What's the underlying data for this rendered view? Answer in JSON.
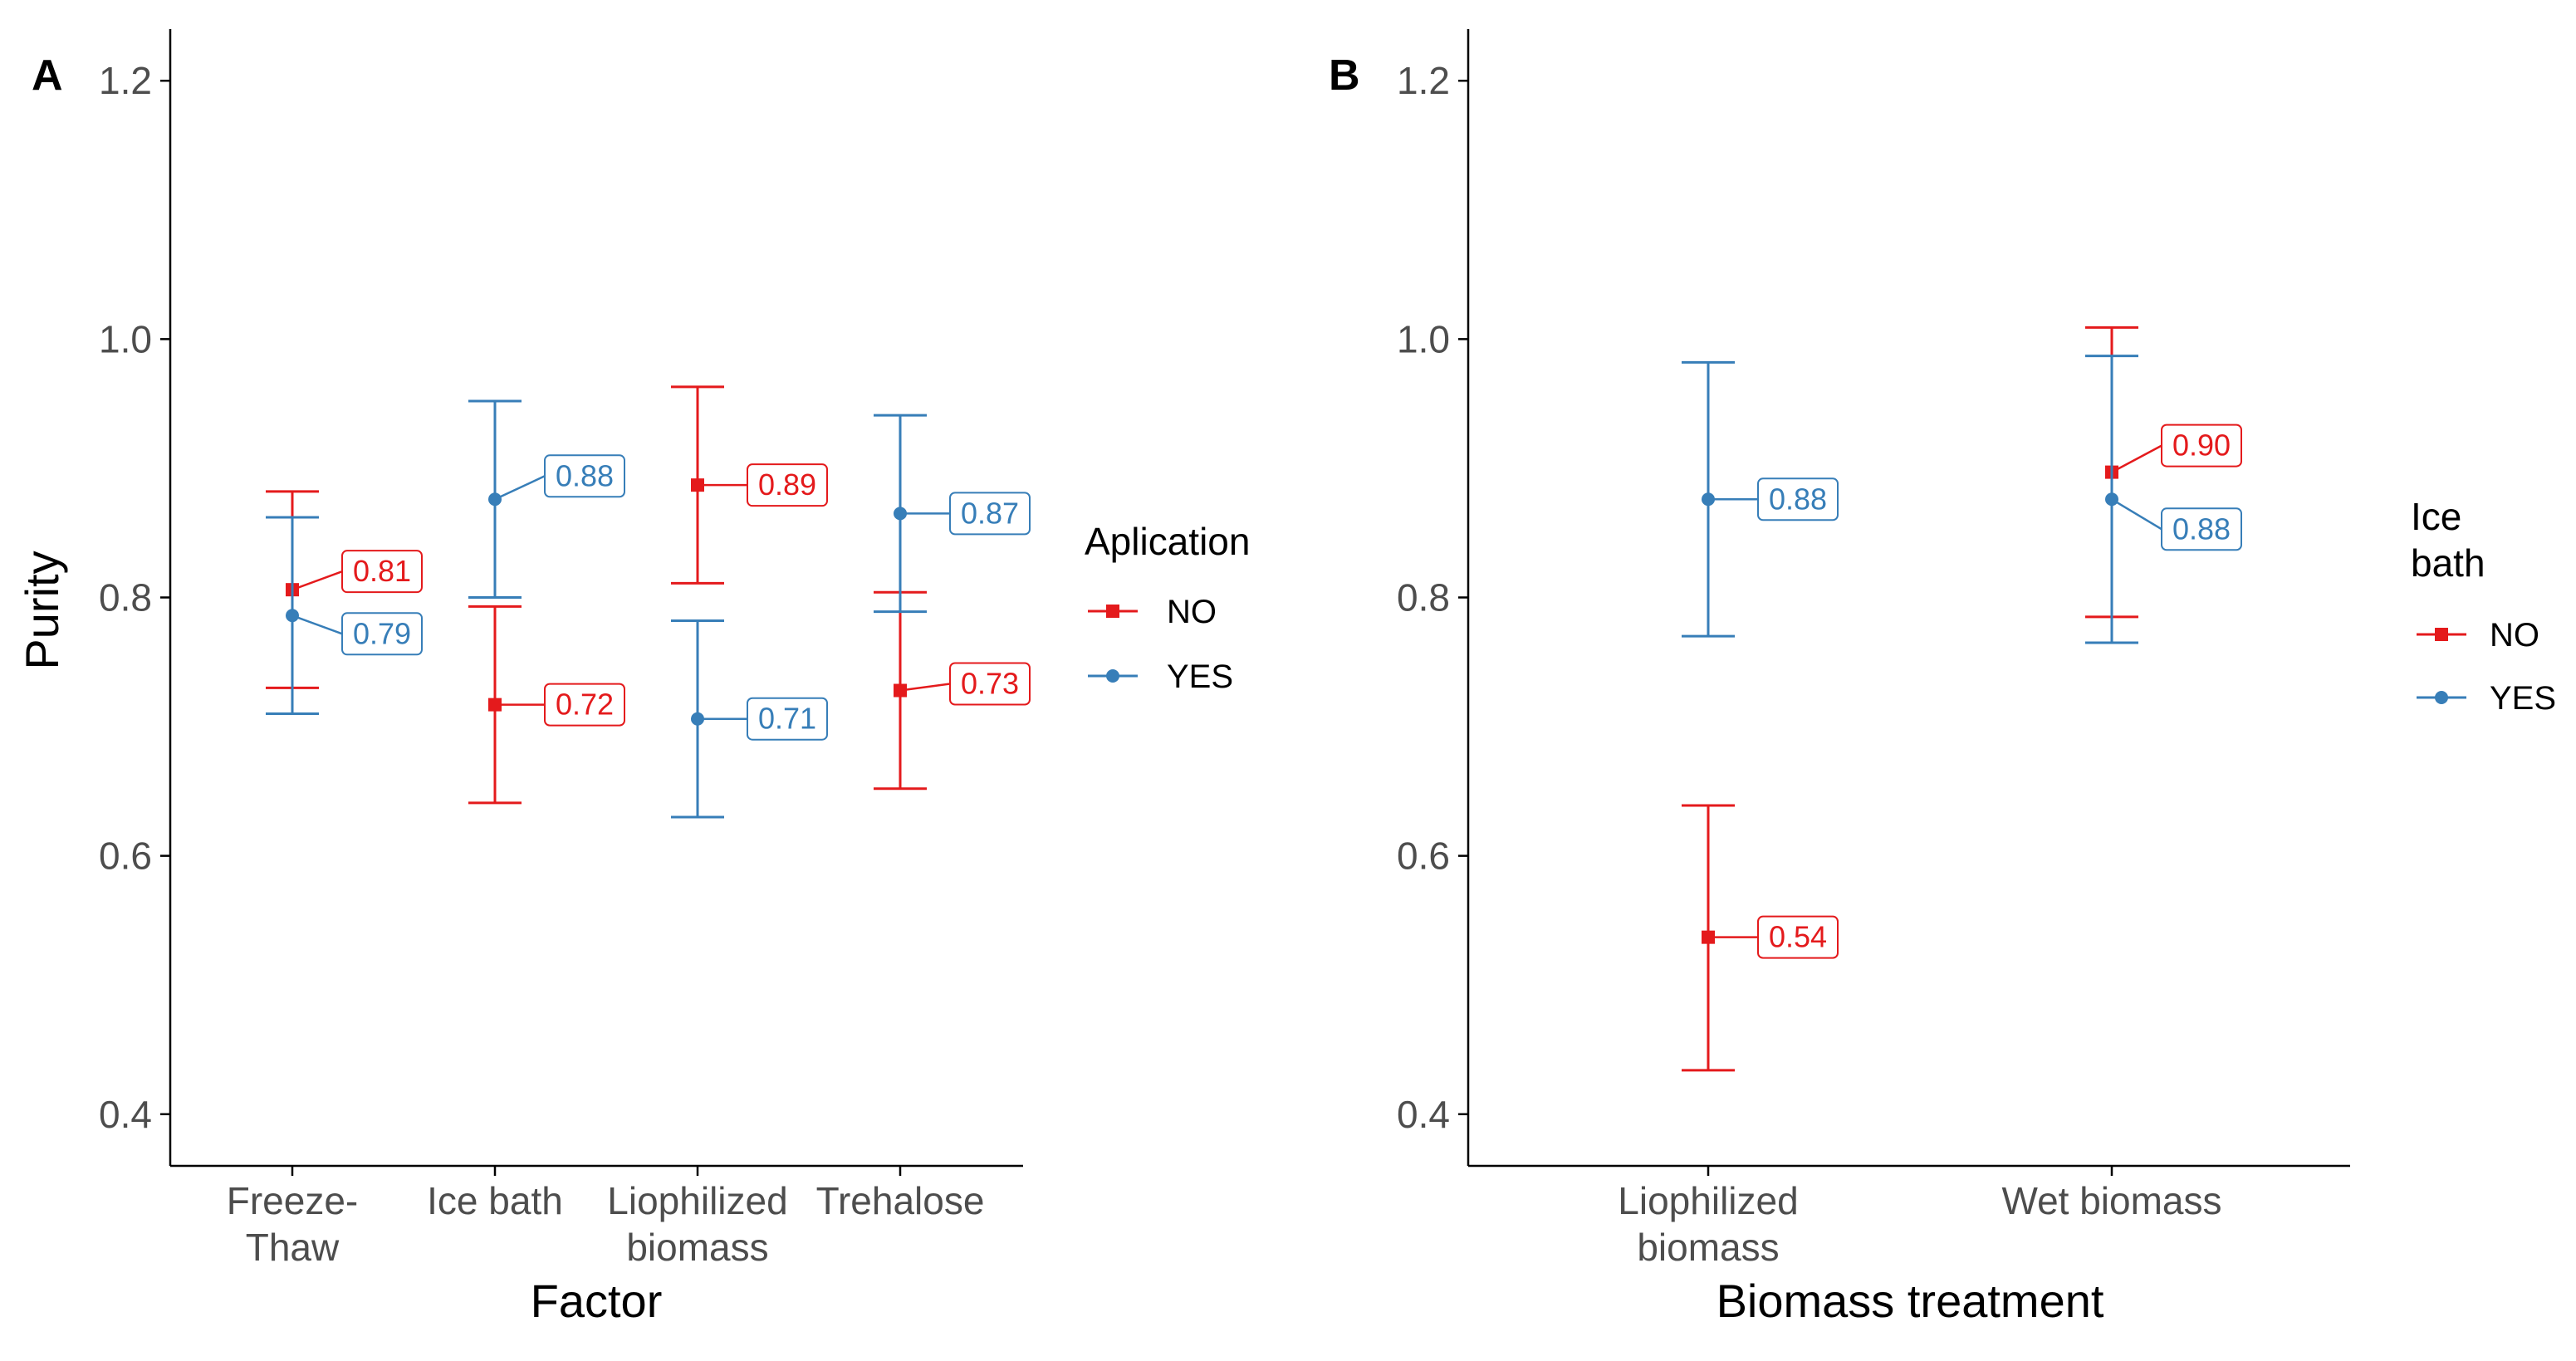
{
  "colors": {
    "NO": "#E41A1C",
    "YES": "#377EB8",
    "axis": "#000000",
    "tick_text": "#4d4d4d"
  },
  "chart_data": [
    {
      "type": "errorbar-point",
      "panel": "A",
      "xlabel": "Factor",
      "ylabel": "Purity",
      "ylim": [
        0.36,
        1.24
      ],
      "yticks": [
        "0.4",
        "0.6",
        "0.8",
        "1.0",
        "1.2"
      ],
      "categories": [
        [
          "Freeze-",
          "Thaw"
        ],
        [
          "Ice bath"
        ],
        [
          "Liophilized",
          "biomass"
        ],
        [
          "Trehalose"
        ]
      ],
      "legend_title": [
        "Aplication"
      ],
      "series": [
        {
          "name": "NO",
          "marker": "square",
          "values": [
            0.806,
            0.717,
            0.887,
            0.728
          ],
          "lower": [
            0.73,
            0.641,
            0.811,
            0.652
          ],
          "upper": [
            0.882,
            0.793,
            0.963,
            0.804
          ],
          "labels": [
            "0.81",
            "0.72",
            "0.89",
            "0.73"
          ]
        },
        {
          "name": "YES",
          "marker": "circle",
          "values": [
            0.786,
            0.876,
            0.706,
            0.865
          ],
          "lower": [
            0.71,
            0.8,
            0.63,
            0.789
          ],
          "upper": [
            0.862,
            0.952,
            0.782,
            0.941
          ],
          "labels": [
            "0.79",
            "0.88",
            "0.71",
            "0.87"
          ]
        }
      ]
    },
    {
      "type": "errorbar-point",
      "panel": "B",
      "xlabel": "Biomass treatment",
      "ylabel": "",
      "ylim": [
        0.36,
        1.24
      ],
      "yticks": [
        "0.4",
        "0.6",
        "0.8",
        "1.0",
        "1.2"
      ],
      "categories": [
        [
          "Liophilized",
          "biomass"
        ],
        [
          "Wet biomass"
        ]
      ],
      "legend_title": [
        "Ice",
        "bath"
      ],
      "series": [
        {
          "name": "NO",
          "marker": "square",
          "values": [
            0.537,
            0.897
          ],
          "lower": [
            0.434,
            0.785
          ],
          "upper": [
            0.639,
            1.009
          ],
          "labels": [
            "0.54",
            "0.90"
          ]
        },
        {
          "name": "YES",
          "marker": "circle",
          "values": [
            0.876,
            0.876
          ],
          "lower": [
            0.77,
            0.765
          ],
          "upper": [
            0.982,
            0.987
          ],
          "labels": [
            "0.88",
            "0.88"
          ]
        }
      ]
    }
  ]
}
